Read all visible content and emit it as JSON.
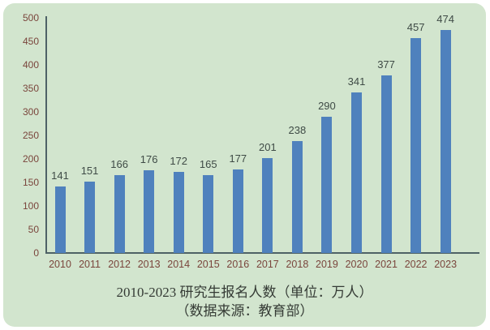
{
  "chart_data": {
    "type": "bar",
    "title": "2010-2023 研究生报名人数（单位：万人）",
    "subtitle": "（数据来源：教育部）",
    "categories": [
      "2010",
      "2011",
      "2012",
      "2013",
      "2014",
      "2015",
      "2016",
      "2017",
      "2018",
      "2019",
      "2020",
      "2021",
      "2022",
      "2023"
    ],
    "values": [
      141,
      151,
      166,
      176,
      172,
      165,
      177,
      201,
      238,
      290,
      341,
      377,
      457,
      474
    ],
    "xlabel": "",
    "ylabel": "",
    "ylim": [
      0,
      500
    ],
    "yticks": [
      0,
      50,
      100,
      150,
      200,
      250,
      300,
      350,
      400,
      450,
      500
    ],
    "grid": false,
    "legend": "none",
    "data_labels": true,
    "colors": {
      "panel_background": "#d2e5ce",
      "page_background": "#ffffff",
      "bar": "#4f81bd",
      "axis_line": "#4e6266",
      "tick_label": "#7a453c",
      "value_label": "#3f4b46",
      "title_text": "#353b35"
    }
  }
}
